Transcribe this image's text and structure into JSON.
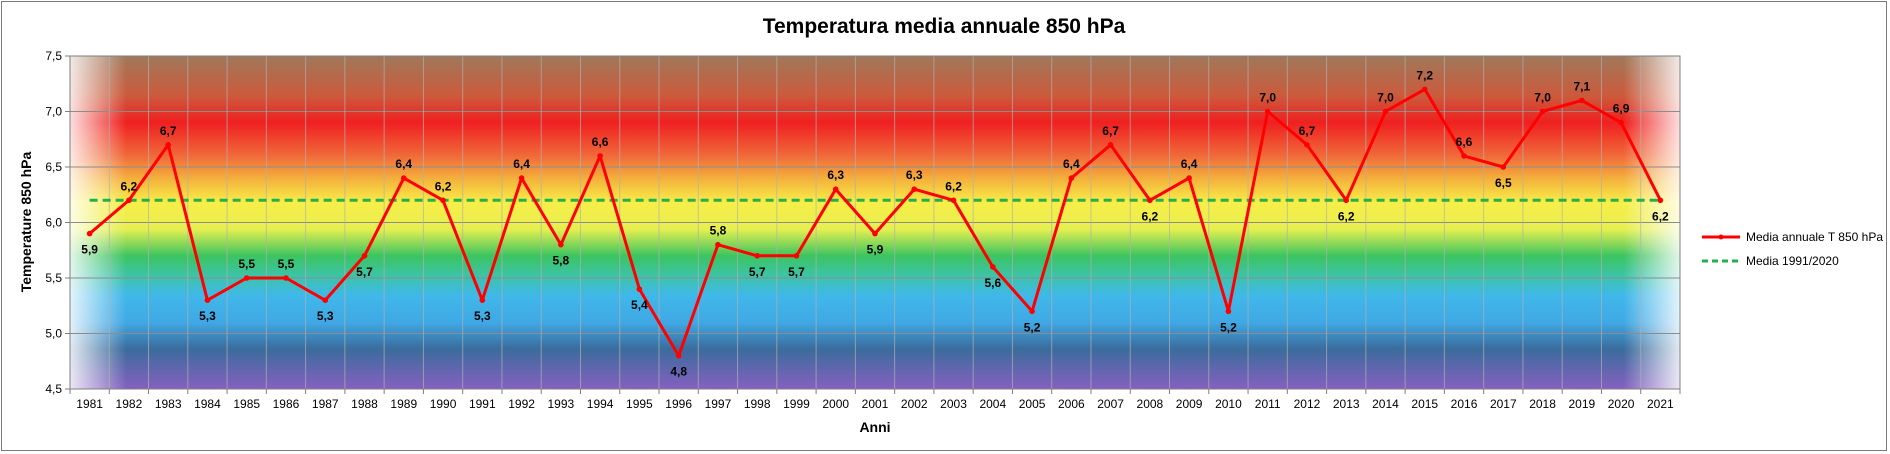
{
  "chart_data": {
    "type": "line",
    "title": "Temperatura media annuale 850 hPa",
    "xlabel": "Anni",
    "ylabel": "Temperature 850 hPa",
    "ylim": [
      4.5,
      7.5
    ],
    "yticks": [
      "4,5",
      "5,0",
      "5,5",
      "6,0",
      "6,5",
      "7,0",
      "7,5"
    ],
    "grid": true,
    "legend_position": "right",
    "categories": [
      "1981",
      "1982",
      "1983",
      "1984",
      "1985",
      "1986",
      "1987",
      "1988",
      "1989",
      "1990",
      "1991",
      "1992",
      "1993",
      "1994",
      "1995",
      "1996",
      "1997",
      "1998",
      "1999",
      "2000",
      "2001",
      "2002",
      "2003",
      "2004",
      "2005",
      "2006",
      "2007",
      "2008",
      "2009",
      "2010",
      "2011",
      "2012",
      "2013",
      "2014",
      "2015",
      "2016",
      "2017",
      "2018",
      "2019",
      "2020",
      "2021"
    ],
    "series": [
      {
        "name": "Media annuale T 850 hPa",
        "color": "#ff0000",
        "values": [
          5.9,
          6.2,
          6.7,
          5.3,
          5.5,
          5.5,
          5.3,
          5.7,
          6.4,
          6.2,
          5.3,
          6.4,
          5.8,
          6.6,
          5.4,
          4.8,
          5.8,
          5.7,
          5.7,
          6.3,
          5.9,
          6.3,
          6.2,
          5.6,
          5.2,
          6.4,
          6.7,
          6.2,
          6.4,
          5.2,
          7.0,
          6.7,
          6.2,
          7.0,
          7.2,
          6.6,
          6.5,
          7.0,
          7.1,
          6.9,
          6.2
        ],
        "labels": [
          "5,9",
          "6,2",
          "6,7",
          "5,3",
          "5,5",
          "5,5",
          "5,3",
          "5,7",
          "6,4",
          "6,2",
          "5,3",
          "6,4",
          "5,8",
          "6,6",
          "5,4",
          "4,8",
          "5,8",
          "5,7",
          "5,7",
          "6,3",
          "5,9",
          "6,3",
          "6,2",
          "5,6",
          "5,2",
          "6,4",
          "6,7",
          "6,2",
          "6,4",
          "5,2",
          "7,0",
          "6,7",
          "6,2",
          "7,0",
          "7,2",
          "6,6",
          "6,5",
          "7,0",
          "7,1",
          "6,9",
          "6,2"
        ]
      },
      {
        "name": "Media 1991/2020",
        "color": "#22b14c",
        "constant": 6.2
      }
    ]
  }
}
